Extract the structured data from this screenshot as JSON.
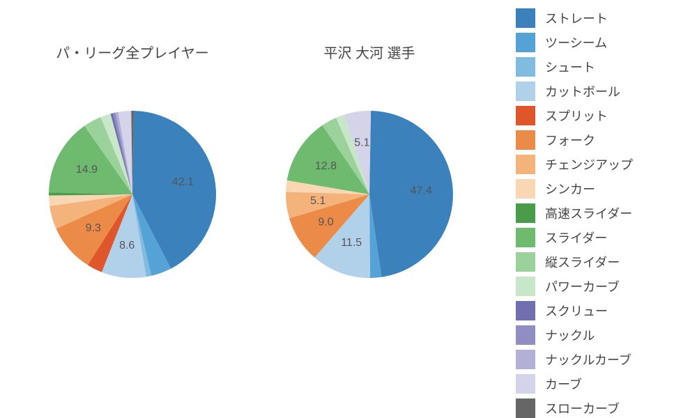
{
  "charts": [
    {
      "id": "pie-left",
      "title": "パ・リーグ全プレイヤー",
      "title_fontsize": 20,
      "radius": 120,
      "start_angle_deg": 89,
      "direction": "clockwise",
      "label_threshold": 5.0,
      "label_color": "#555555",
      "label_fontsize": 16,
      "slices": [
        {
          "value": 42.1,
          "color": "#3b81bb"
        },
        {
          "value": 4.0,
          "color": "#55a2d6"
        },
        {
          "value": 1.0,
          "color": "#82bbe0"
        },
        {
          "value": 8.6,
          "color": "#b1d1ea"
        },
        {
          "value": 3.0,
          "color": "#e0562b"
        },
        {
          "value": 9.3,
          "color": "#ec8b48"
        },
        {
          "value": 4.5,
          "color": "#f4b37b"
        },
        {
          "value": 2.0,
          "color": "#fad7b4"
        },
        {
          "value": 0.6,
          "color": "#4a9c4a"
        },
        {
          "value": 14.9,
          "color": "#6eba6e"
        },
        {
          "value": 3.5,
          "color": "#9bd19b"
        },
        {
          "value": 2.0,
          "color": "#c8e6c8"
        },
        {
          "value": 0.5,
          "color": "#726fae"
        },
        {
          "value": 0.5,
          "color": "#908ec3"
        },
        {
          "value": 0.5,
          "color": "#b2b0d6"
        },
        {
          "value": 2.5,
          "color": "#d4d3e9"
        },
        {
          "value": 0.5,
          "color": "#666666"
        }
      ]
    },
    {
      "id": "pie-right",
      "title": "平沢 大河  選手",
      "title_fontsize": 20,
      "radius": 120,
      "start_angle_deg": 89,
      "direction": "clockwise",
      "label_threshold": 5.0,
      "label_color": "#555555",
      "label_fontsize": 16,
      "slices": [
        {
          "value": 47.4,
          "color": "#3b81bb"
        },
        {
          "value": 2.2,
          "color": "#55a2d6"
        },
        {
          "value": 11.5,
          "color": "#b1d1ea"
        },
        {
          "value": 9.0,
          "color": "#ec8b48"
        },
        {
          "value": 5.1,
          "color": "#f4b37b"
        },
        {
          "value": 2.2,
          "color": "#fad7b4"
        },
        {
          "value": 12.8,
          "color": "#6eba6e"
        },
        {
          "value": 3.0,
          "color": "#9bd19b"
        },
        {
          "value": 1.7,
          "color": "#c8e6c8"
        },
        {
          "value": 5.1,
          "color": "#d4d3e9"
        }
      ]
    }
  ],
  "legend": {
    "swatch_size": 28,
    "label_fontsize": 18,
    "label_color": "#444444",
    "items": [
      {
        "label": "ストレート",
        "color": "#3b81bb"
      },
      {
        "label": "ツーシーム",
        "color": "#55a2d6"
      },
      {
        "label": "シュート",
        "color": "#82bbe0"
      },
      {
        "label": "カットボール",
        "color": "#b1d1ea"
      },
      {
        "label": "スプリット",
        "color": "#e0562b"
      },
      {
        "label": "フォーク",
        "color": "#ec8b48"
      },
      {
        "label": "チェンジアップ",
        "color": "#f4b37b"
      },
      {
        "label": "シンカー",
        "color": "#fad7b4"
      },
      {
        "label": "高速スライダー",
        "color": "#4a9c4a"
      },
      {
        "label": "スライダー",
        "color": "#6eba6e"
      },
      {
        "label": "縦スライダー",
        "color": "#9bd19b"
      },
      {
        "label": "パワーカーブ",
        "color": "#c8e6c8"
      },
      {
        "label": "スクリュー",
        "color": "#726fae"
      },
      {
        "label": "ナックル",
        "color": "#908ec3"
      },
      {
        "label": "ナックルカーブ",
        "color": "#b2b0d6"
      },
      {
        "label": "カーブ",
        "color": "#d4d3e9"
      },
      {
        "label": "スローカーブ",
        "color": "#666666"
      }
    ]
  },
  "background_color": "#ffffff"
}
